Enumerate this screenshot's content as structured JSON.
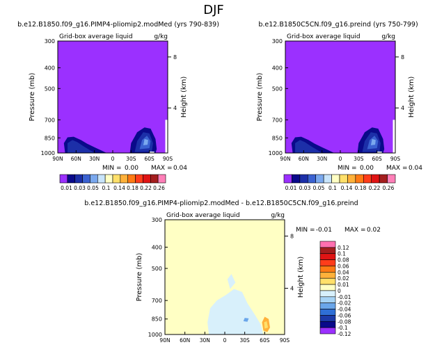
{
  "figure_title": "DJF",
  "chart_data": [
    {
      "type": "contour",
      "title": "b.e12.B1850.f09_g16.PIMP4-pliomip2.modMed (yrs 790-839)",
      "subtitle": "Grid-box average liquid",
      "units": "g/kg",
      "xlabel": "",
      "ylabel": "Pressure (mb)",
      "ylabel_right": "Height (km)",
      "x_ticks": [
        "90N",
        "60N",
        "30N",
        "0",
        "30S",
        "60S",
        "90S"
      ],
      "y_ticks": [
        "300",
        "400",
        "500",
        "700",
        "850",
        "1000"
      ],
      "right_ticks": [
        "8",
        "4"
      ],
      "stats": {
        "min_label": "MIN =",
        "min": "0.00",
        "max_label": "MAX =",
        "max": "0.04"
      }
    },
    {
      "type": "contour",
      "title": "b.e12.B1850C5CN.f09_g16.preind (yrs 750-799)",
      "subtitle": "Grid-box average liquid",
      "units": "g/kg",
      "xlabel": "",
      "ylabel": "Pressure (mb)",
      "ylabel_right": "Height (km)",
      "x_ticks": [
        "90N",
        "60N",
        "30N",
        "0",
        "30S",
        "60S",
        "90S"
      ],
      "y_ticks": [
        "300",
        "400",
        "500",
        "700",
        "850",
        "1000"
      ],
      "right_ticks": [
        "8",
        "4"
      ],
      "stats": {
        "min_label": "MIN =",
        "min": "0.00",
        "max_label": "MAX =",
        "max": "0.04"
      }
    },
    {
      "type": "contour",
      "title": "b.e12.B1850.f09_g16.PIMP4-pliomip2.modMed - b.e12.B1850C5CN.f09_g16.preind",
      "subtitle": "Grid-box average liquid",
      "units": "g/kg",
      "xlabel": "",
      "ylabel": "Pressure (mb)",
      "ylabel_right": "Height (km)",
      "x_ticks": [
        "90N",
        "60N",
        "30N",
        "0",
        "30S",
        "60S",
        "90S"
      ],
      "y_ticks": [
        "300",
        "400",
        "500",
        "700",
        "850",
        "1000"
      ],
      "right_ticks": [
        "8",
        "4"
      ],
      "stats": {
        "min_label": "MIN =",
        "min": "-0.01",
        "max_label": "MAX =",
        "max": "0.02"
      }
    }
  ],
  "colorbar_top": {
    "labels": [
      "0.01",
      "0.03",
      "0.05",
      "0.1",
      "0.14",
      "0.18",
      "0.22",
      "0.26"
    ],
    "colors": [
      "#9b30ff",
      "#0a0a8a",
      "#1c2fa8",
      "#3b62d1",
      "#7aa8ee",
      "#c8e4fb",
      "#ffffc4",
      "#ffe06a",
      "#ffb13a",
      "#ff7a14",
      "#ff3c1a",
      "#e01414",
      "#a41e1e",
      "#ff7fb8"
    ]
  },
  "colorbar_diff": {
    "labels": [
      "0.12",
      "0.1",
      "0.08",
      "0.06",
      "0.04",
      "0.02",
      "0.01",
      "0",
      "-0.01",
      "-0.02",
      "-0.04",
      "-0.06",
      "-0.08",
      "-0.1",
      "-0.12"
    ],
    "colors": [
      "#ff70b0",
      "#a41e1e",
      "#e01414",
      "#ff3c1a",
      "#ff7a14",
      "#ffb13a",
      "#ffe06a",
      "#ffffc4",
      "#d8f0fb",
      "#a6d3f5",
      "#6aa6ea",
      "#2f6fd6",
      "#1c3aa8",
      "#0a0a8a",
      "#9b30ff"
    ]
  },
  "colors": {
    "field_background": "#9b30ff",
    "diff_background": "#ffffc4",
    "diff_negative": "#d8f0fb"
  }
}
